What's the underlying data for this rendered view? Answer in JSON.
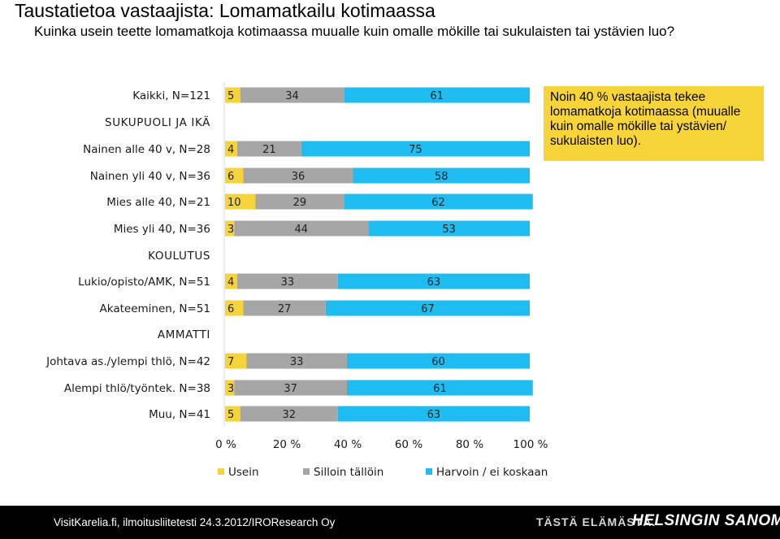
{
  "header": {
    "title": "Taustatietoa vastaajista: Lomamatkailu kotimaassa",
    "subtitle": "Kuinka usein teette lomamatkoja kotimaassa muualle kuin omalle mökille tai sukulaisten tai ystävien luo?"
  },
  "note": {
    "text": "Noin 40 % vastaajista tekee lomamatkoja kotimaassa (muualle kuin omalle mökille tai ystävien/ sukulaisten luo)."
  },
  "footer": {
    "source": "VisitKarelia.fi, ilmoitusliitetesti 24.3.2012/IROResearch Oy",
    "slogan": "TÄSTÄ ELÄMÄSTÄ.",
    "logo": "HELSINGIN SANOMAT"
  },
  "colors": {
    "usein": "#f5d33b",
    "silloin": "#a6a6a6",
    "harvoin": "#1ebcf0"
  },
  "chart_data": {
    "type": "bar",
    "orientation": "horizontal",
    "stacked": true,
    "title": "Taustatietoa vastaajista: Lomamatkailu kotimaassa",
    "xlim": [
      0,
      100
    ],
    "x_ticks": [
      "0 %",
      "20 %",
      "40 %",
      "60 %",
      "80 %",
      "100 %"
    ],
    "legend_position": "bottom",
    "series": [
      {
        "key": "usein",
        "name": "Usein"
      },
      {
        "key": "silloin",
        "name": "Silloin tällöin"
      },
      {
        "key": "harvoin",
        "name": "Harvoin / ei koskaan"
      }
    ],
    "rows": [
      {
        "kind": "bar",
        "label": "Kaikki, N=121",
        "values": [
          5,
          34,
          61
        ]
      },
      {
        "kind": "group",
        "label": "SUKUPUOLI JA IKÄ"
      },
      {
        "kind": "bar",
        "label": "Nainen alle 40 v, N=28",
        "values": [
          4,
          21,
          75
        ]
      },
      {
        "kind": "bar",
        "label": "Nainen yli 40 v, N=36",
        "values": [
          6,
          36,
          58
        ]
      },
      {
        "kind": "bar",
        "label": "Mies alle 40, N=21",
        "values": [
          10,
          29,
          62
        ]
      },
      {
        "kind": "bar",
        "label": "Mies yli 40, N=36",
        "values": [
          3,
          44,
          53
        ]
      },
      {
        "kind": "group",
        "label": "KOULUTUS"
      },
      {
        "kind": "bar",
        "label": "Lukio/opisto/AMK, N=51",
        "values": [
          4,
          33,
          63
        ]
      },
      {
        "kind": "bar",
        "label": "Akateeminen, N=51",
        "values": [
          6,
          27,
          67
        ]
      },
      {
        "kind": "group",
        "label": "AMMATTI"
      },
      {
        "kind": "bar",
        "label": "Johtava as./ylempi thlö, N=42",
        "values": [
          7,
          33,
          60
        ]
      },
      {
        "kind": "bar",
        "label": "Alempi thlö/työntek. N=38",
        "values": [
          3,
          37,
          61
        ]
      },
      {
        "kind": "bar",
        "label": "Muu, N=41",
        "values": [
          5,
          32,
          63
        ]
      }
    ]
  }
}
